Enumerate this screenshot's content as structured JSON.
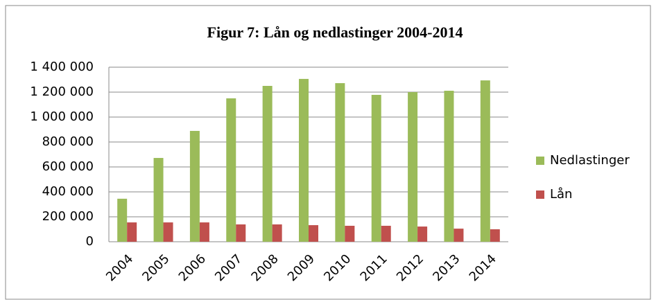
{
  "chart_data": {
    "type": "bar",
    "title": "Figur 7: Lån og nedlastinger 2004-2014",
    "categories": [
      "2004",
      "2005",
      "2006",
      "2007",
      "2008",
      "2009",
      "2010",
      "2011",
      "2012",
      "2013",
      "2014"
    ],
    "series": [
      {
        "name": "Nedlastinger",
        "color": "#9bbb59",
        "values": [
          345000,
          672000,
          889000,
          1150000,
          1250000,
          1306000,
          1272000,
          1178000,
          1200000,
          1211000,
          1294000
        ]
      },
      {
        "name": "Lån",
        "color": "#c0504d",
        "values": [
          155000,
          155000,
          155000,
          139000,
          139000,
          133000,
          128000,
          128000,
          122000,
          105000,
          100000
        ]
      }
    ],
    "ylim": [
      0,
      1400000
    ],
    "yticks": [
      0,
      {
        "value": 200000,
        "label": "200 000"
      },
      {
        "value": 400000,
        "label": "400 000"
      },
      {
        "value": 600000,
        "label": "600 000"
      },
      {
        "value": 800000,
        "label": "800 000"
      },
      {
        "value": 1000000,
        "label": "1 000 000"
      },
      {
        "value": 1200000,
        "label": "1 200 000"
      },
      {
        "value": 1400000,
        "label": "1 400 000"
      }
    ],
    "grid": true,
    "legend": "right"
  }
}
